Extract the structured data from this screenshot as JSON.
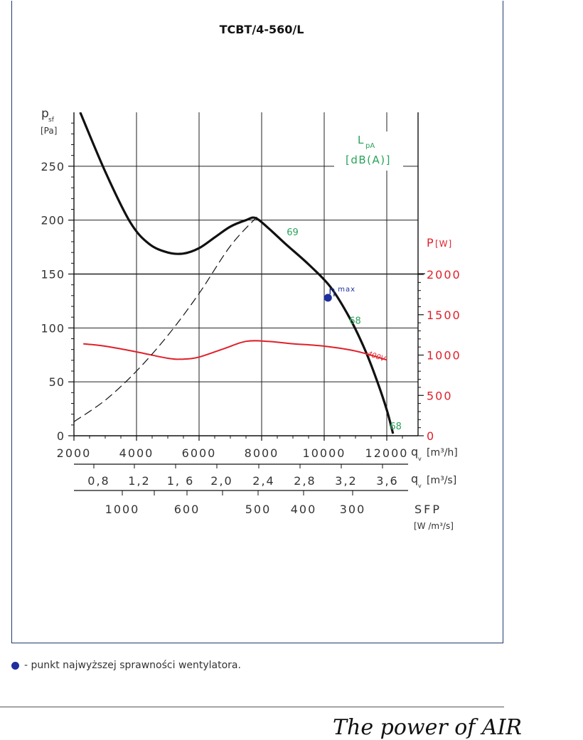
{
  "chart_data": {
    "type": "line",
    "title": "TCBT/4-560/L",
    "y_axis": {
      "label_main": "p",
      "label_sub": "sf",
      "unit": "[Pa]",
      "range": [
        0,
        300
      ],
      "ticks": [
        "0",
        "50",
        "100",
        "150",
        "200",
        "250"
      ]
    },
    "y2_axis": {
      "label": "P",
      "unit": "[W]",
      "range": [
        0,
        2000
      ],
      "ticks": [
        "0",
        "500",
        "1000",
        "1500",
        "2000"
      ],
      "color": "#e0202a"
    },
    "x_axis": {
      "label": "q",
      "sub": "v",
      "unit": "[m³/h]",
      "range": [
        2000,
        13000
      ],
      "ticks": [
        "2000",
        "4000",
        "6000",
        "8000",
        "10000",
        "12000"
      ]
    },
    "x_axis_secondary": {
      "label": "q",
      "sub": "v",
      "unit": "[m³/s]",
      "ticks": [
        "0,8",
        "1,2",
        "1, 6",
        "2,0",
        "2,4",
        "2,8",
        "3,2",
        "3,6"
      ]
    },
    "sfp_axis": {
      "label": "SFP",
      "unit": "[W /m³/s]",
      "ticks": [
        "1000",
        "600",
        "500",
        "400",
        "300"
      ]
    },
    "lpa_label": {
      "line1": "L",
      "sub": "pA",
      "line2": "[dB(A)]",
      "color": "#2aa35a"
    },
    "series": [
      {
        "name": "pressure",
        "color": "#111111",
        "points": [
          [
            2200,
            300
          ],
          [
            3000,
            245
          ],
          [
            3800,
            198
          ],
          [
            4400,
            178
          ],
          [
            5000,
            170
          ],
          [
            5500,
            169
          ],
          [
            6000,
            174
          ],
          [
            6500,
            184
          ],
          [
            7000,
            194
          ],
          [
            7500,
            200
          ],
          [
            7800,
            202
          ],
          [
            8200,
            193
          ],
          [
            8800,
            177
          ],
          [
            9500,
            159
          ],
          [
            10200,
            138
          ],
          [
            10800,
            110
          ],
          [
            11300,
            80
          ],
          [
            11700,
            50
          ],
          [
            12000,
            24
          ],
          [
            12200,
            2
          ]
        ]
      },
      {
        "name": "400V",
        "color": "#e0202a",
        "axis": "y2",
        "points": [
          [
            2300,
            1140
          ],
          [
            3000,
            1110
          ],
          [
            4000,
            1040
          ],
          [
            5000,
            960
          ],
          [
            5500,
            950
          ],
          [
            6000,
            975
          ],
          [
            6800,
            1080
          ],
          [
            7500,
            1170
          ],
          [
            8200,
            1170
          ],
          [
            9000,
            1140
          ],
          [
            10000,
            1110
          ],
          [
            11000,
            1050
          ],
          [
            12000,
            940
          ]
        ]
      },
      {
        "name": "system",
        "color": "#111111",
        "dashed": true,
        "points": [
          [
            2000,
            13
          ],
          [
            3000,
            33
          ],
          [
            4000,
            60
          ],
          [
            5000,
            93
          ],
          [
            6000,
            132
          ],
          [
            7000,
            176
          ],
          [
            7850,
            203
          ]
        ]
      }
    ],
    "annotations": [
      {
        "text": "69",
        "x": 8800,
        "y": 186,
        "color": "#2aa35a"
      },
      {
        "text": "68",
        "x": 10800,
        "y": 104,
        "color": "#2aa35a"
      },
      {
        "text": "68",
        "x": 12100,
        "y": 6,
        "color": "#2aa35a"
      }
    ],
    "eta_max": {
      "symbol": "η",
      "label": "max",
      "x": 10120,
      "y": 128,
      "color": "#1f2fa0"
    },
    "grid": true
  },
  "legend": {
    "text": "- punkt najwyższej sprawności wentylatora."
  },
  "brand": {
    "text": "The power of AIR"
  }
}
